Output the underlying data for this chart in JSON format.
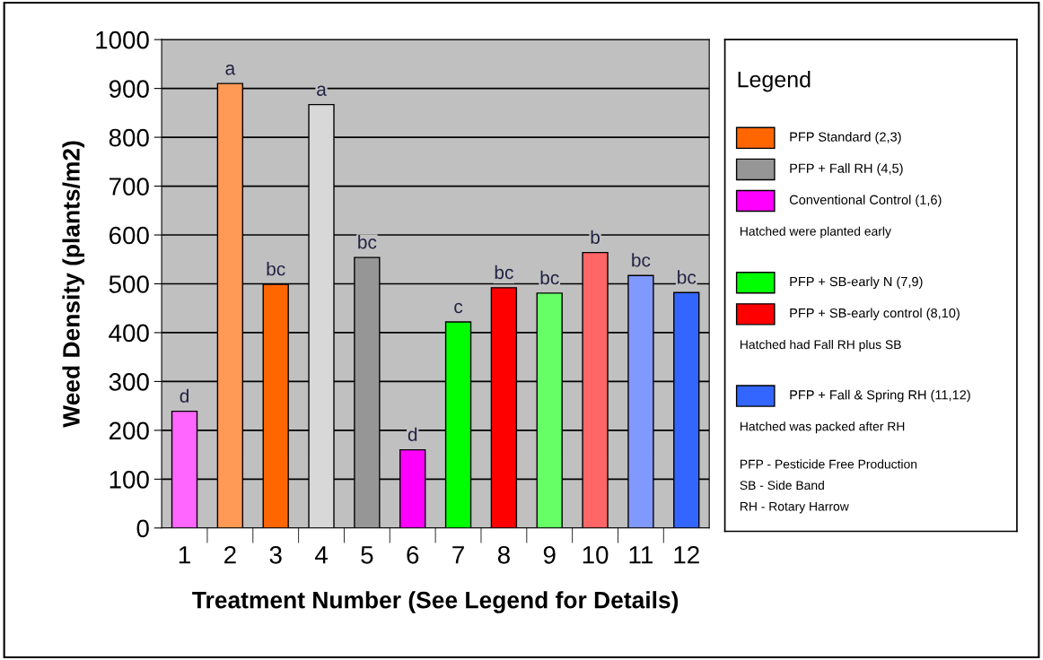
{
  "chart_data": {
    "type": "bar",
    "xlabel": "Treatment Number (See Legend for Details)",
    "ylabel": "Weed Density (plants/m2)",
    "legend_title": "Legend",
    "legend": "right",
    "grid": "y",
    "categories": [
      "1",
      "2",
      "3",
      "4",
      "5",
      "6",
      "7",
      "8",
      "9",
      "10",
      "11",
      "12"
    ],
    "ylim": [
      0,
      1000
    ],
    "yticks": [
      0,
      100,
      200,
      300,
      400,
      500,
      600,
      700,
      800,
      900,
      1000
    ],
    "series": [
      {
        "name": "PFP Standard (2,3)",
        "color": "#ff6600",
        "colors": [
          null,
          "#ff9955",
          "#ff6600",
          null,
          null,
          null,
          null,
          null,
          null,
          null,
          null,
          null
        ],
        "values": [
          null,
          910,
          499,
          null,
          null,
          null,
          null,
          null,
          null,
          null,
          null,
          null
        ]
      },
      {
        "name": "PFP + Fall RH (4,5)",
        "color": "#969696",
        "colors": [
          null,
          null,
          null,
          "#d8d8d8",
          "#969696",
          null,
          null,
          null,
          null,
          null,
          null,
          null
        ],
        "values": [
          null,
          null,
          null,
          867,
          554,
          null,
          null,
          null,
          null,
          null,
          null,
          null
        ]
      },
      {
        "name": "Conventional Control (1,6)",
        "color": "#ff00ff",
        "colors": [
          "#ff66ff",
          null,
          null,
          null,
          null,
          "#ff00ff",
          null,
          null,
          null,
          null,
          null,
          null
        ],
        "values": [
          239,
          null,
          null,
          null,
          null,
          160,
          null,
          null,
          null,
          null,
          null,
          null
        ]
      },
      {
        "name": "PFP + SB-early N (7,9)",
        "color": "#00ff00",
        "colors": [
          null,
          null,
          null,
          null,
          null,
          null,
          "#00ff00",
          null,
          "#66ff66",
          null,
          null,
          null
        ],
        "values": [
          null,
          null,
          null,
          null,
          null,
          null,
          422,
          null,
          481,
          null,
          null,
          null
        ]
      },
      {
        "name": "PFP + SB-early control (8,10)",
        "color": "#ff0000",
        "colors": [
          null,
          null,
          null,
          null,
          null,
          null,
          null,
          "#ff0000",
          null,
          "#ff6666",
          null,
          null
        ],
        "values": [
          null,
          null,
          null,
          null,
          null,
          null,
          null,
          492,
          null,
          564,
          null,
          null
        ]
      },
      {
        "name": "PFP + Fall & Spring RH (11,12)",
        "color": "#3366ff",
        "colors": [
          null,
          null,
          null,
          null,
          null,
          null,
          null,
          null,
          null,
          null,
          "#8099ff",
          "#3366ff"
        ],
        "values": [
          null,
          null,
          null,
          null,
          null,
          null,
          null,
          null,
          null,
          null,
          517,
          482
        ]
      }
    ],
    "annotations": [
      {
        "text": "d",
        "x": "1",
        "y": 239
      },
      {
        "text": "a",
        "x": "2",
        "y": 910
      },
      {
        "text": "bc",
        "x": "3",
        "y": 499
      },
      {
        "text": "a",
        "x": "4",
        "y": 867
      },
      {
        "text": "bc",
        "x": "5",
        "y": 554
      },
      {
        "text": "d",
        "x": "6",
        "y": 160
      },
      {
        "text": "c",
        "x": "7",
        "y": 422
      },
      {
        "text": "bc",
        "x": "8",
        "y": 492
      },
      {
        "text": "bc",
        "x": "9",
        "y": 481
      },
      {
        "text": "b",
        "x": "10",
        "y": 564
      },
      {
        "text": "bc",
        "x": "11",
        "y": 517
      },
      {
        "text": "bc",
        "x": "12",
        "y": 482
      },
      "Hatched were planted early",
      "Hatched had Fall RH plus SB",
      "Hatched was packed after RH",
      "PFP - Pesticide Free Production",
      "SB - Side Band",
      "RH - Rotary Harrow"
    ]
  }
}
